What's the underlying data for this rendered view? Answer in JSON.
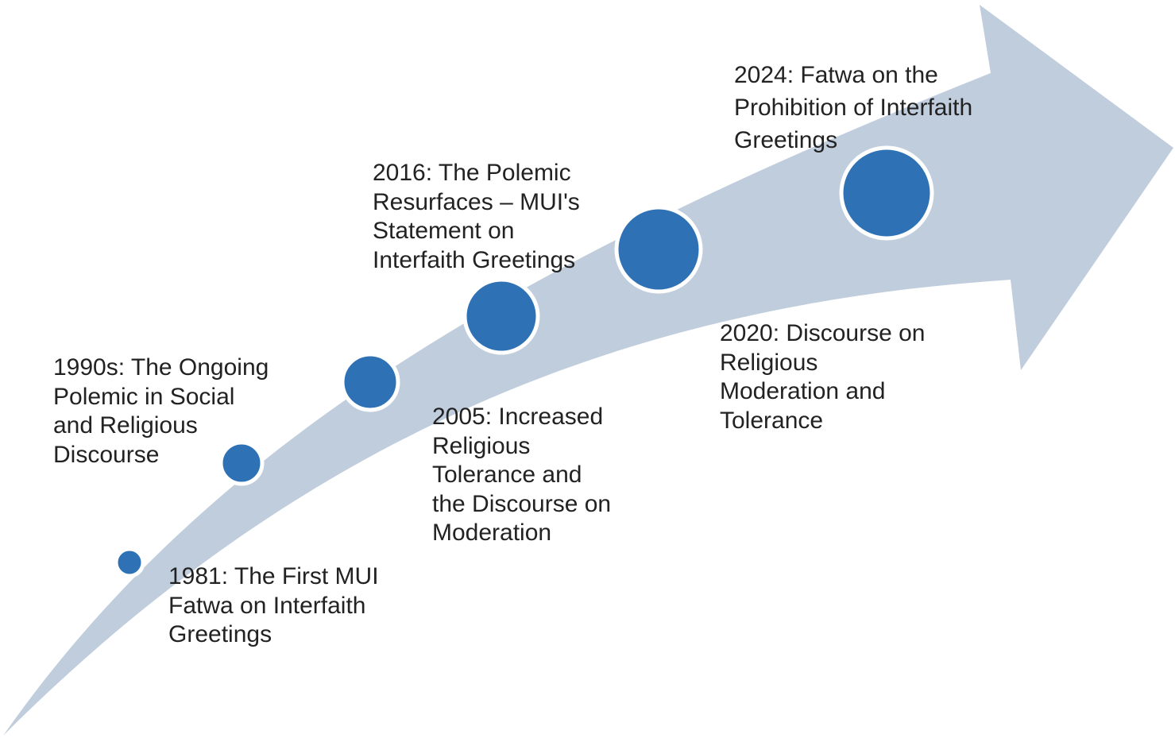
{
  "colors": {
    "arrow": "#c0cddd",
    "circle_fill": "#2e72b5",
    "circle_ring": "#ffffff",
    "text": "#222222"
  },
  "milestones": [
    {
      "label": "1981: The First MUI\nFatwa on Interfaith\nGreetings"
    },
    {
      "label": " 1990s: The Ongoing\nPolemic in Social\nand Religious\nDiscourse"
    },
    {
      "label": "2005: Increased\nReligious\nTolerance and\nthe Discourse on\nModeration"
    },
    {
      "label": "2016: The Polemic\nResurfaces – MUI's\nStatement on\nInterfaith Greetings"
    },
    {
      "label": "2020: Discourse on\nReligious\nModeration and\nTolerance"
    },
    {
      "label": "2024: Fatwa on the\nProhibition of Interfaith\nGreetings"
    }
  ]
}
